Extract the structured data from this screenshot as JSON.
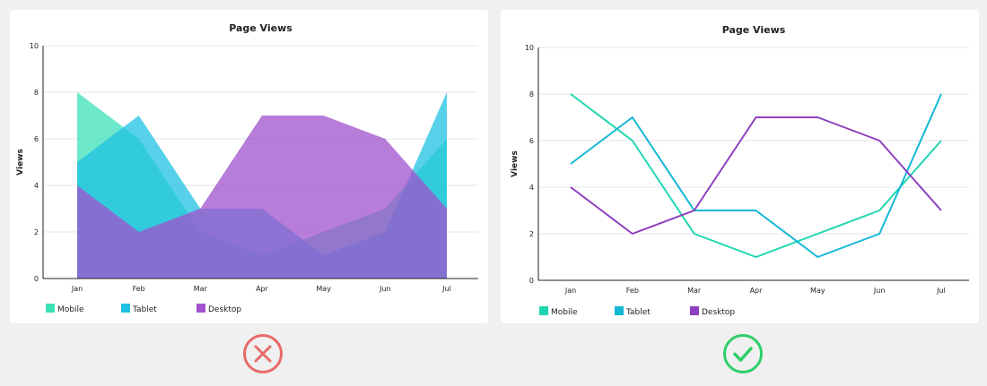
{
  "chart_data": [
    {
      "type": "area",
      "title": "Page Views",
      "xlabel": "",
      "ylabel": "Views",
      "ylim": [
        0,
        10
      ],
      "yticks": [
        0,
        2,
        4,
        6,
        8,
        10
      ],
      "categories": [
        "Jan",
        "Feb",
        "Mar",
        "Apr",
        "May",
        "Jun",
        "Jul"
      ],
      "grid": true,
      "legend_position": "bottom-left",
      "series": [
        {
          "name": "Mobile",
          "color": "#3ee0b8",
          "values": [
            8,
            6,
            2,
            1,
            2,
            3,
            6
          ]
        },
        {
          "name": "Tablet",
          "color": "#1ec1e2",
          "values": [
            5,
            7,
            3,
            3,
            1,
            2,
            8
          ]
        },
        {
          "name": "Desktop",
          "color": "#a052cc",
          "values": [
            4,
            2,
            3,
            7,
            7,
            6,
            3
          ]
        }
      ]
    },
    {
      "type": "line",
      "title": "Page Views",
      "xlabel": "",
      "ylabel": "Views",
      "ylim": [
        0,
        10
      ],
      "yticks": [
        0,
        2,
        4,
        6,
        8,
        10
      ],
      "categories": [
        "Jan",
        "Feb",
        "Mar",
        "Apr",
        "May",
        "Jun",
        "Jul"
      ],
      "grid": true,
      "legend_position": "bottom-left",
      "series": [
        {
          "name": "Mobile",
          "color": "#1fd6b0",
          "values": [
            8,
            6,
            2,
            1,
            2,
            3,
            6
          ]
        },
        {
          "name": "Tablet",
          "color": "#12b8d6",
          "values": [
            5,
            7,
            3,
            3,
            1,
            2,
            8
          ]
        },
        {
          "name": "Desktop",
          "color": "#8e3fbf",
          "values": [
            4,
            2,
            3,
            7,
            7,
            6,
            3
          ]
        }
      ]
    }
  ],
  "verdicts": [
    {
      "icon": "cross-circle-icon",
      "color": "#ea6a6a"
    },
    {
      "icon": "check-circle-icon",
      "color": "#2ecf6a"
    }
  ]
}
